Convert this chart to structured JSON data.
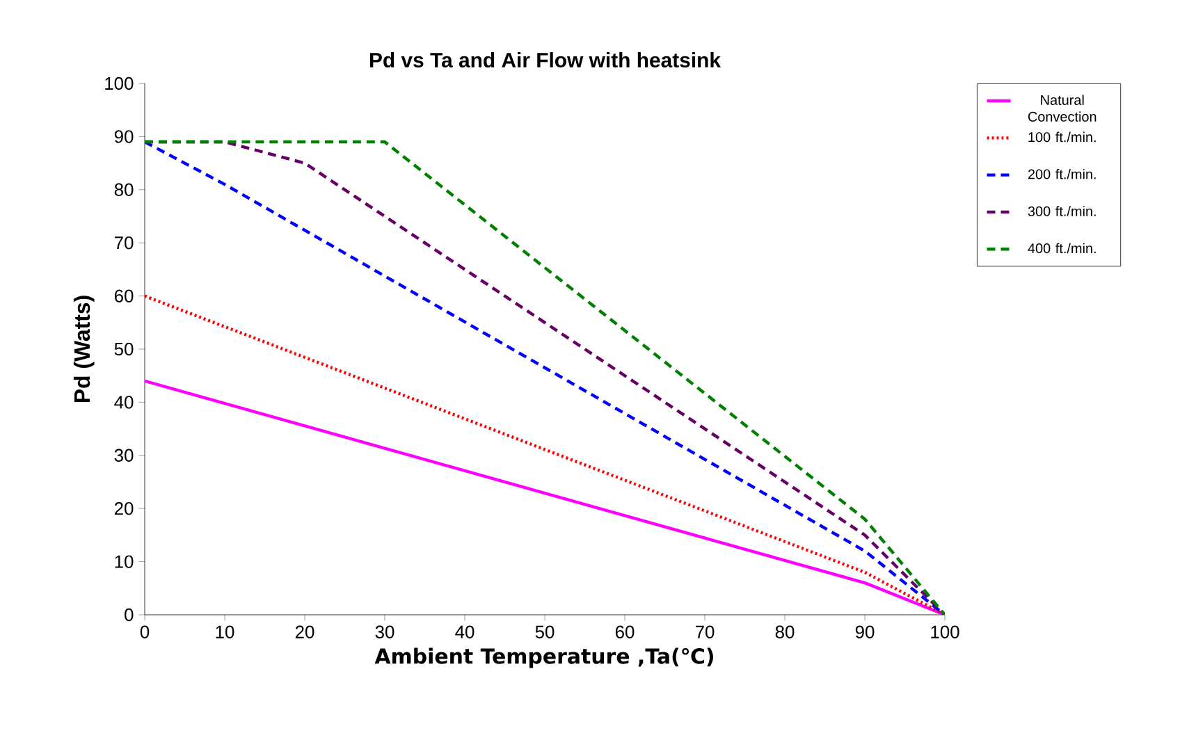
{
  "chart_data": {
    "type": "line",
    "title": "Pd vs Ta and Air Flow with heatsink",
    "xlabel": "Ambient Temperature ,Ta(℃)",
    "ylabel": "Pd (Watts)",
    "xlim": [
      0,
      100
    ],
    "ylim": [
      0,
      100
    ],
    "xticks": [
      0,
      10,
      20,
      30,
      40,
      50,
      60,
      70,
      80,
      90,
      100
    ],
    "yticks": [
      0,
      10,
      20,
      30,
      40,
      50,
      60,
      70,
      80,
      90,
      100
    ],
    "legend": "right",
    "grid": false,
    "marker": "none",
    "series": [
      {
        "name": "Natural Convection",
        "color": "#ff00ff",
        "line_style": "solid",
        "x": [
          0,
          90,
          100
        ],
        "values": [
          44,
          6,
          0
        ]
      },
      {
        "name": "100 ft./min.",
        "color": "#ff0000",
        "line_style": "dotted",
        "x": [
          0,
          90,
          100
        ],
        "values": [
          60,
          8,
          0
        ]
      },
      {
        "name": "200 ft./min.",
        "color": "#0000ff",
        "line_style": "dashed",
        "x": [
          0,
          10,
          90,
          100
        ],
        "values": [
          89,
          81,
          12,
          0
        ]
      },
      {
        "name": "300 ft./min.",
        "color": "#660066",
        "line_style": "dashed",
        "x": [
          0,
          10,
          20,
          90,
          100
        ],
        "values": [
          89,
          89,
          85,
          15,
          0
        ]
      },
      {
        "name": "400 ft./min.",
        "color": "#008000",
        "line_style": "dashed",
        "x": [
          0,
          30,
          90,
          100
        ],
        "values": [
          89,
          89,
          18,
          0
        ]
      }
    ]
  }
}
